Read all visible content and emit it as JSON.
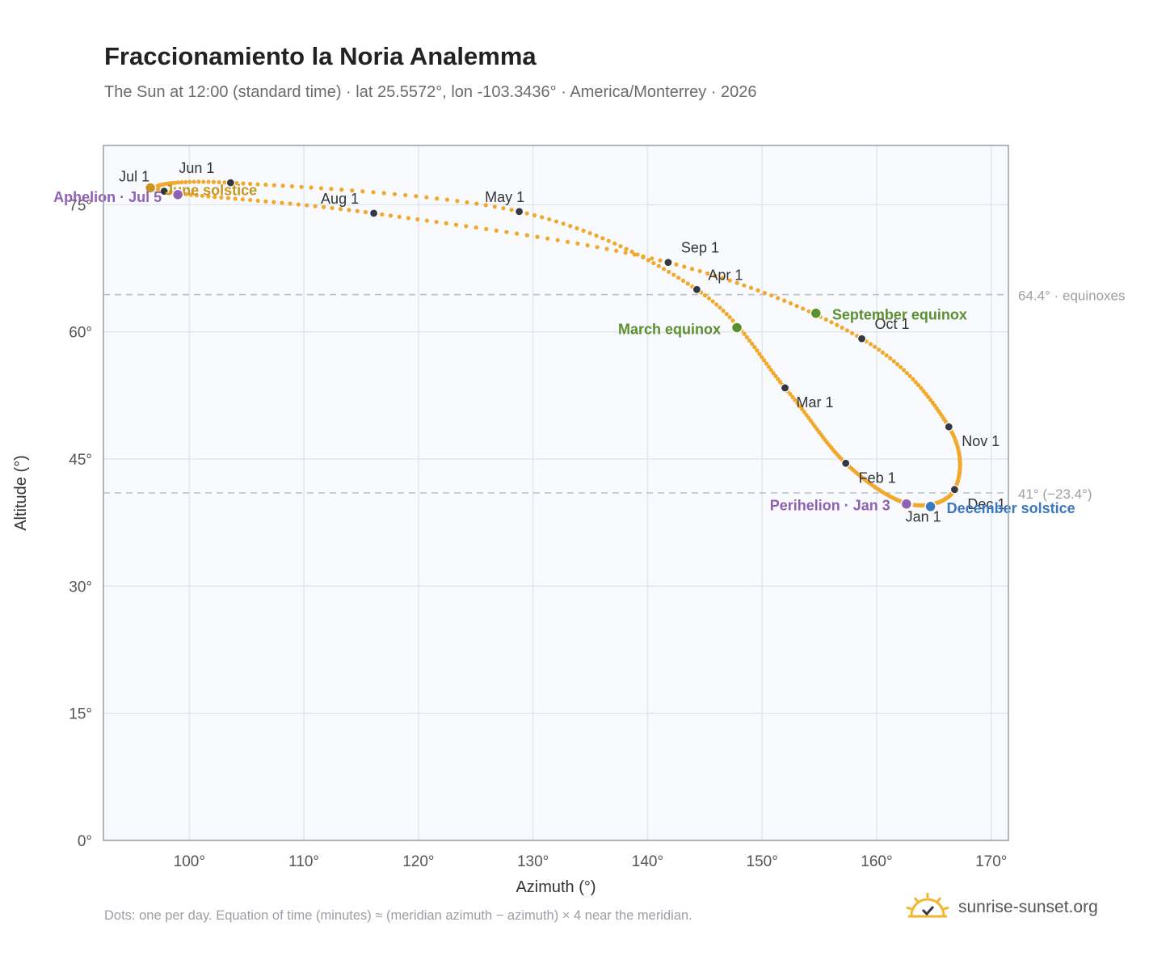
{
  "header": {
    "title": "Fraccionamiento la Noria Analemma",
    "subtitle": "The Sun at 12:00 (standard time) · lat 25.5572°, lon -103.3436° · America/Monterrey · 2026"
  },
  "footer": {
    "note": "Dots: one per day. Equation of time (minutes) ≈ (meridian azimuth − azimuth) × 4 near the meridian.",
    "brand": "sunrise-sunset.org"
  },
  "colors": {
    "curve": "#f2a82a",
    "month_dot": "#333842",
    "june_solstice": "#c8961e",
    "december_solstice": "#3a78c0",
    "equinox": "#5a9030",
    "apsis": "#9060b4",
    "plot_bg": "#f8fafd",
    "grid": "#e1e6ee",
    "ref_line": "#b8c0cc"
  },
  "chart_data": {
    "type": "scatter",
    "title": "Fraccionamiento la Noria Analemma",
    "xlabel": "Azimuth (°)",
    "ylabel": "Altitude (°)",
    "xlim": [
      92.5,
      171.5
    ],
    "ylim": [
      0,
      82
    ],
    "xticks": [
      100,
      110,
      120,
      130,
      140,
      150,
      160,
      170
    ],
    "xtick_labels": [
      "100°",
      "110°",
      "120°",
      "130°",
      "140°",
      "150°",
      "160°",
      "170°"
    ],
    "yticks": [
      0,
      15,
      30,
      45,
      60,
      75
    ],
    "ytick_labels": [
      "0°",
      "15°",
      "30°",
      "45°",
      "60°",
      "75°"
    ],
    "grid": true,
    "reference_lines": [
      {
        "y": 64.4,
        "label": "64.4° · equinoxes"
      },
      {
        "y": 41.0,
        "label": "41° (−23.4°)"
      }
    ],
    "months": [
      {
        "label": "Jan 1",
        "az": 162.8,
        "alt": 39.7
      },
      {
        "label": "Feb 1",
        "az": 157.3,
        "alt": 44.5
      },
      {
        "label": "Mar 1",
        "az": 152.0,
        "alt": 53.4
      },
      {
        "label": "Apr 1",
        "az": 144.3,
        "alt": 65.0
      },
      {
        "label": "May 1",
        "az": 128.8,
        "alt": 74.2
      },
      {
        "label": "Jun 1",
        "az": 103.6,
        "alt": 77.6
      },
      {
        "label": "Jul 1",
        "az": 97.8,
        "alt": 76.6
      },
      {
        "label": "Aug 1",
        "az": 116.1,
        "alt": 74.0
      },
      {
        "label": "Sep 1",
        "az": 141.8,
        "alt": 68.2
      },
      {
        "label": "Oct 1",
        "az": 158.7,
        "alt": 59.2
      },
      {
        "label": "Nov 1",
        "az": 166.3,
        "alt": 48.8
      },
      {
        "label": "Dec 1",
        "az": 166.8,
        "alt": 41.4
      }
    ],
    "events": [
      {
        "label": "June solstice",
        "az": 96.6,
        "alt": 77.0,
        "kind": "june_solstice"
      },
      {
        "label": "December solstice",
        "az": 164.7,
        "alt": 39.4,
        "kind": "december_solstice"
      },
      {
        "label": "March equinox",
        "az": 147.8,
        "alt": 60.5,
        "kind": "equinox"
      },
      {
        "label": "September equinox",
        "az": 154.7,
        "alt": 62.2,
        "kind": "equinox"
      },
      {
        "label": "Aphelion · Jul 5",
        "az": 99.0,
        "alt": 76.2,
        "kind": "apsis"
      },
      {
        "label": "Perihelion · Jan 3",
        "az": 162.6,
        "alt": 39.7,
        "kind": "apsis"
      }
    ]
  }
}
